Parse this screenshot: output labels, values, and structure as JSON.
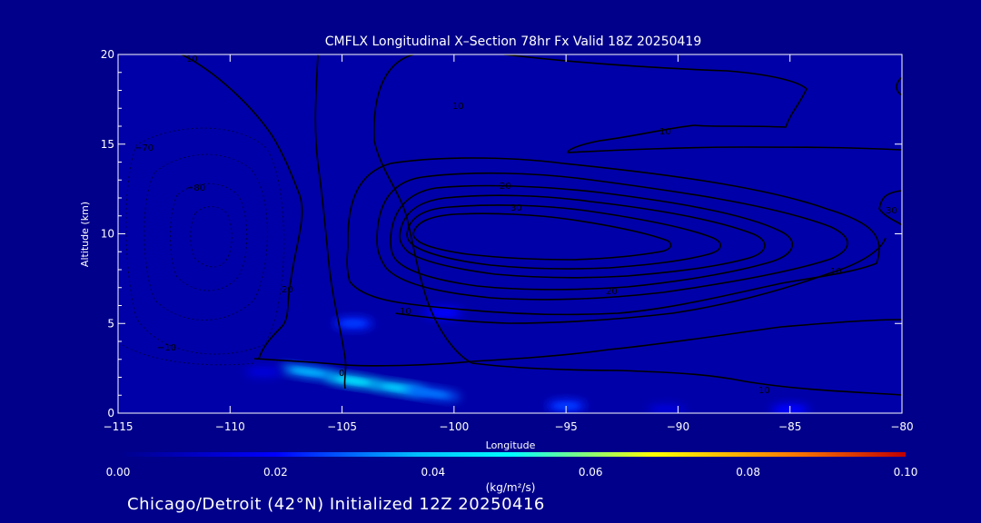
{
  "chart_data": {
    "type": "heatmap",
    "title": "CMFLX Longitudinal X–Section 78hr  Fx Valid 18Z 20250419",
    "xlabel": "Longitude",
    "ylabel": "Altitude (km)",
    "xlim": [
      -115,
      -80
    ],
    "ylim": [
      0,
      20
    ],
    "x_ticks": [
      -115,
      -110,
      -105,
      -100,
      -95,
      -90,
      -85,
      -80
    ],
    "x_tick_labels": [
      "−115",
      "−110",
      "−105",
      "−100",
      "−95",
      "−90",
      "−85",
      "−80"
    ],
    "y_ticks": [
      0,
      5,
      10,
      15,
      20
    ],
    "y_tick_labels": [
      "0",
      "5",
      "10",
      "15",
      "20"
    ],
    "colorbar": {
      "label": "(kg/m²/s)",
      "range": [
        0,
        0.1
      ],
      "ticks": [
        "0.00",
        "0.02",
        "0.04",
        "0.06",
        "0.08",
        "0.10"
      ],
      "colors": [
        "#00008a",
        "#0000ff",
        "#00bfff",
        "#00ffff",
        "#ffff00",
        "#ff8000",
        "#c00000"
      ]
    },
    "flux_patches": [
      {
        "lon": -106.5,
        "alt": 2.3,
        "value": 0.03
      },
      {
        "lon": -104.5,
        "alt": 1.8,
        "value": 0.04
      },
      {
        "lon": -102.5,
        "alt": 1.4,
        "value": 0.035
      },
      {
        "lon": -101.0,
        "alt": 1.1,
        "value": 0.025
      },
      {
        "lon": -104.5,
        "alt": 5.0,
        "value": 0.02
      },
      {
        "lon": -100.5,
        "alt": 5.6,
        "value": 0.015
      },
      {
        "lon": -95.0,
        "alt": 0.4,
        "value": 0.02
      },
      {
        "lon": -90.5,
        "alt": 0.2,
        "value": 0.01
      },
      {
        "lon": -85.0,
        "alt": 0.2,
        "value": 0.015
      },
      {
        "lon": -108.5,
        "alt": 2.3,
        "value": 0.01
      }
    ],
    "contour_labels": [
      "10",
      "10",
      "10",
      "10",
      "10",
      "20",
      "20",
      "30",
      "30",
      "20",
      "10",
      "0"
    ],
    "neg_contour_labels": [
      "−70",
      "−80",
      "−10"
    ]
  },
  "footer": "Chicago/Detroit (42°N) Initialized 12Z 20250416"
}
